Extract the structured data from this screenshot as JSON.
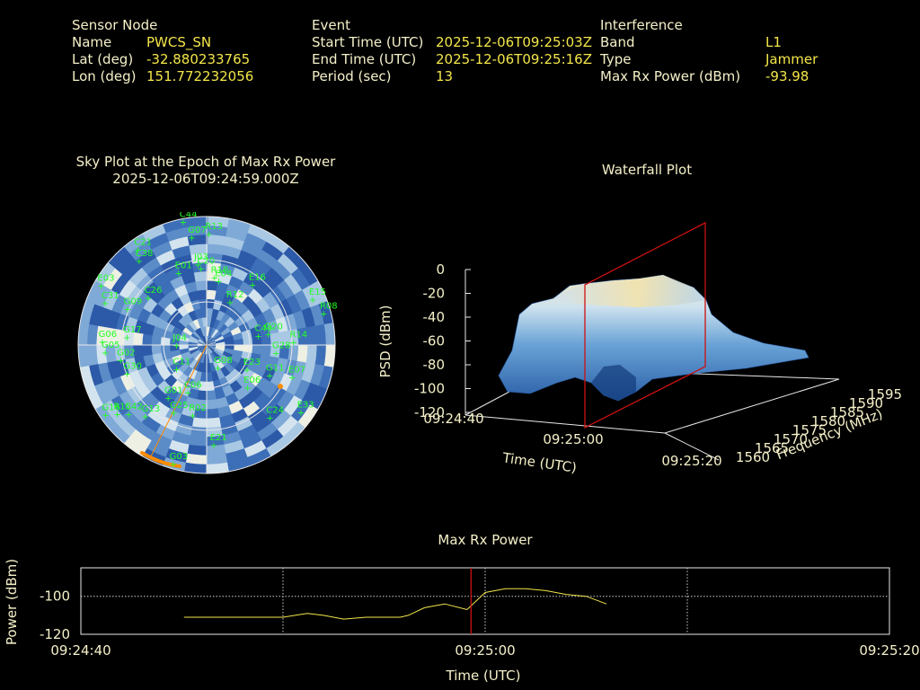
{
  "header": {
    "sensor": {
      "heading": "Sensor Node",
      "rows": [
        {
          "label": "Name",
          "value": "PWCS_SN"
        },
        {
          "label": "Lat (deg)",
          "value": "-32.880233765"
        },
        {
          "label": "Lon (deg)",
          "value": "151.772232056"
        }
      ]
    },
    "event": {
      "heading": "Event",
      "rows": [
        {
          "label": "Start Time (UTC)",
          "value": "2025-12-06T09:25:03Z"
        },
        {
          "label": "End Time (UTC)",
          "value": "2025-12-06T09:25:16Z"
        },
        {
          "label": "Period (sec)",
          "value": "13"
        }
      ]
    },
    "interference": {
      "heading": "Interference",
      "rows": [
        {
          "label": "Band",
          "value": "L1"
        },
        {
          "label": "Type",
          "value": "Jammer"
        },
        {
          "label": "Max Rx Power (dBm)",
          "value": "-93.98"
        }
      ]
    }
  },
  "skyplot": {
    "title": "Sky Plot at the Epoch of Max Rx Power",
    "subtitle": "2025-12-06T09:24:59.000Z",
    "sat_color": "#22ff22",
    "satellites": [
      {
        "id": "C44",
        "az": 350,
        "el": 2
      },
      {
        "id": "G07",
        "az": 353,
        "el": 14
      },
      {
        "id": "R13",
        "az": 2,
        "el": 12
      },
      {
        "id": "C21",
        "az": 325,
        "el": 8
      },
      {
        "id": "C38",
        "az": 322,
        "el": 15
      },
      {
        "id": "J03",
        "az": 355,
        "el": 33
      },
      {
        "id": "C20",
        "az": 357,
        "el": 36
      },
      {
        "id": "E03",
        "az": 300,
        "el": 6
      },
      {
        "id": "C31",
        "az": 293,
        "el": 14
      },
      {
        "id": "E01",
        "az": 340,
        "el": 36
      },
      {
        "id": "C26",
        "az": 310,
        "el": 38
      },
      {
        "id": "G09",
        "az": 295,
        "el": 30
      },
      {
        "id": "R18",
        "az": 8,
        "el": 42
      },
      {
        "id": "E04",
        "az": 12,
        "el": 44
      },
      {
        "id": "E16",
        "az": 38,
        "el": 36
      },
      {
        "id": "R12",
        "az": 30,
        "el": 55
      },
      {
        "id": "E15",
        "az": 67,
        "el": 8
      },
      {
        "id": "R08",
        "az": 75,
        "el": 4
      },
      {
        "id": "G20",
        "az": 80,
        "el": 45
      },
      {
        "id": "C40",
        "az": 80,
        "el": 52
      },
      {
        "id": "R14",
        "az": 88,
        "el": 28
      },
      {
        "id": "G28",
        "az": 96,
        "el": 40
      },
      {
        "id": "G06",
        "az": 272,
        "el": 18
      },
      {
        "id": "G17",
        "az": 276,
        "el": 35
      },
      {
        "id": "G05",
        "az": 266,
        "el": 20
      },
      {
        "id": "G02",
        "az": 260,
        "el": 30
      },
      {
        "id": "G30",
        "az": 250,
        "el": 32
      },
      {
        "id": "J04",
        "az": 270,
        "el": 70
      },
      {
        "id": "C11",
        "az": 230,
        "el": 64
      },
      {
        "id": "G08",
        "az": 150,
        "el": 72
      },
      {
        "id": "E06",
        "az": 135,
        "el": 48
      },
      {
        "id": "E23",
        "az": 120,
        "el": 56
      },
      {
        "id": "G11",
        "az": 115,
        "el": 40
      },
      {
        "id": "E07",
        "az": 110,
        "el": 25
      },
      {
        "id": "C24",
        "az": 138,
        "el": 22
      },
      {
        "id": "E33",
        "az": 125,
        "el": 8
      },
      {
        "id": "G01",
        "az": 215,
        "el": 45
      },
      {
        "id": "C06",
        "az": 200,
        "el": 55
      },
      {
        "id": "G25",
        "az": 205,
        "el": 38
      },
      {
        "id": "R02",
        "az": 190,
        "el": 40
      },
      {
        "id": "G13",
        "az": 220,
        "el": 25
      },
      {
        "id": "C42",
        "az": 228,
        "el": 18
      },
      {
        "id": "R15",
        "az": 232,
        "el": 12
      },
      {
        "id": "G16",
        "az": 235,
        "el": 5
      },
      {
        "id": "G03",
        "az": 195,
        "el": 4
      },
      {
        "id": "E21",
        "az": 175,
        "el": 20
      }
    ],
    "jammer_color": "#ff8c00"
  },
  "waterfall": {
    "title": "Waterfall Plot",
    "z_label": "PSD (dBm)",
    "z_ticks": [
      "0",
      "-20",
      "-40",
      "-60",
      "-80",
      "-100",
      "-120"
    ],
    "x_label": "Time (UTC)",
    "x_ticks": [
      "09:24:40",
      "09:25:00",
      "09:25:20"
    ],
    "y_label": "Frequency (MHz)",
    "y_ticks": [
      "1560",
      "1565",
      "1570",
      "1575",
      "1580",
      "1585",
      "1590",
      "1595"
    ],
    "marker_color": "#cc1111"
  },
  "chart_data": {
    "type": "line",
    "title": "Max Rx Power",
    "xlabel": "Time (UTC)",
    "ylabel": "Power (dBm)",
    "x_ticks": [
      "09:24:40",
      "09:25:00",
      "09:25:20"
    ],
    "y_ticks": [
      "-100",
      "-120"
    ],
    "xlim_seconds": [
      0,
      40
    ],
    "ylim": [
      -120,
      -85
    ],
    "grid": true,
    "line_color": "#f3e64a",
    "marker_color": "#dd1111",
    "marker_x_seconds": 19.3,
    "series": [
      {
        "x": [
          5.1,
          9.0,
          10.0,
          11.2,
          12.0,
          13.0,
          14.1,
          15.0,
          15.8,
          16.2,
          17.0,
          18.0,
          19.1,
          20.0,
          21.0,
          22.0,
          23.0,
          24.0,
          25.0,
          26.0
        ],
        "values": [
          -111,
          -111,
          -111,
          -109,
          -110,
          -112,
          -111,
          -111,
          -111,
          -110,
          -106,
          -104,
          -107,
          -98,
          -96,
          -96,
          -97,
          -99,
          -100,
          -104
        ]
      }
    ]
  }
}
